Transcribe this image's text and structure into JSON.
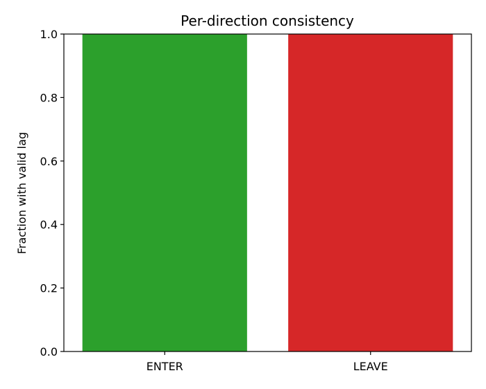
{
  "chart_data": {
    "type": "bar",
    "title": "Per-direction consistency",
    "xlabel": "",
    "ylabel": "Fraction with valid lag",
    "categories": [
      "ENTER",
      "LEAVE"
    ],
    "values": [
      1.0,
      1.0
    ],
    "colors": [
      "#2ca02c",
      "#d62728"
    ],
    "ylim": [
      0.0,
      1.0
    ],
    "yticks": [
      "0.0",
      "0.2",
      "0.4",
      "0.6",
      "0.8",
      "1.0"
    ],
    "grid": false,
    "legend": "none"
  }
}
